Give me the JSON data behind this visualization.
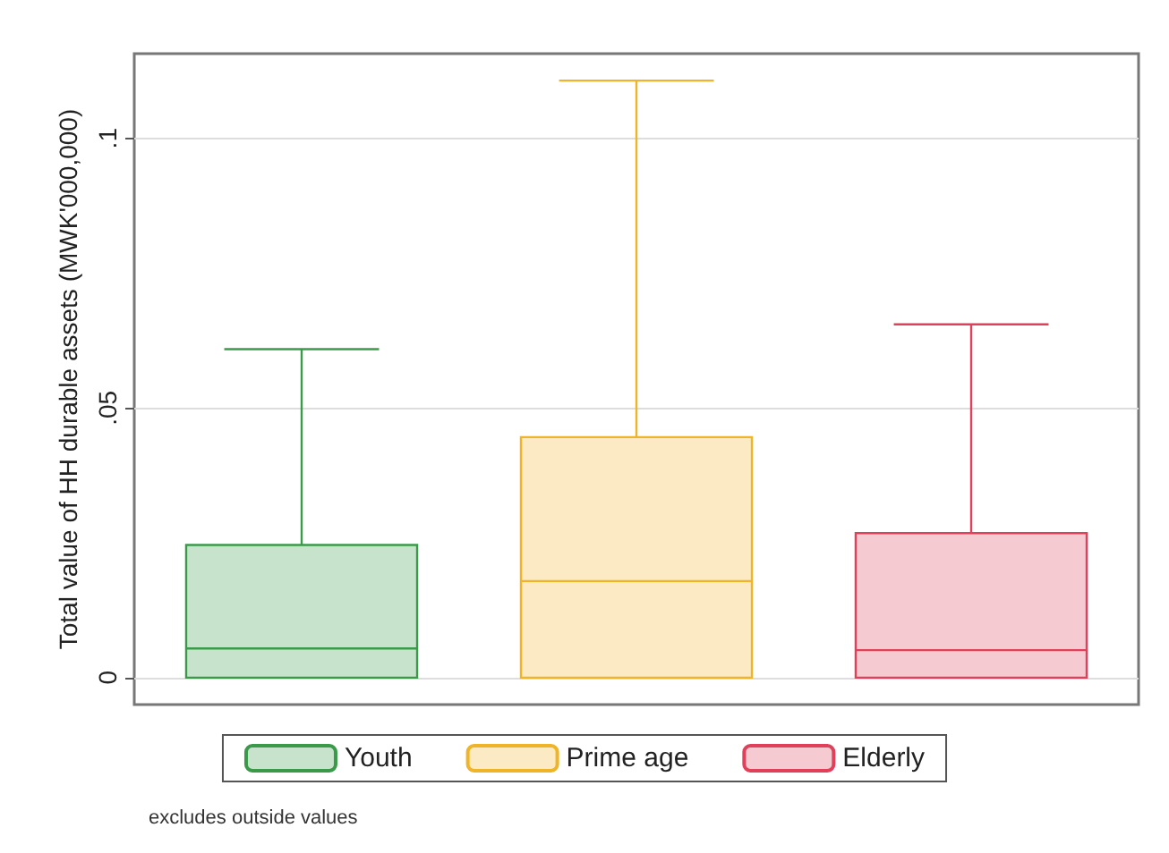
{
  "chart_data": {
    "type": "box",
    "ylabel": "Total value of HH durable assets (MWK'000,000)",
    "categories": [
      null,
      null,
      null
    ],
    "series": [
      {
        "name": "Youth",
        "color": "#3a9a4a",
        "boxes": [
          {
            "low": 0,
            "q1": 0,
            "median": 0.0054,
            "q3": 0.0246,
            "high": 0.0609
          },
          null,
          null
        ]
      },
      {
        "name": "Prime age",
        "color": "#f0b429",
        "boxes": [
          null,
          {
            "low": 0,
            "q1": 0,
            "median": 0.0179,
            "q3": 0.0446,
            "high": 0.1107
          },
          null
        ]
      },
      {
        "name": "Elderly",
        "color": "#e0405a",
        "boxes": [
          null,
          null,
          {
            "low": 0,
            "q1": 0,
            "median": 0.0051,
            "q3": 0.0268,
            "high": 0.0655
          }
        ]
      }
    ],
    "ylim": [
      -0.005,
      0.1157
    ],
    "yticks": [
      0,
      {
        "value": 0.05,
        "label": ".05"
      },
      {
        "value": 0.1,
        "label": ".1"
      }
    ],
    "grid": "y",
    "legend": "bottom",
    "annotations": [
      "excludes outside values"
    ]
  }
}
